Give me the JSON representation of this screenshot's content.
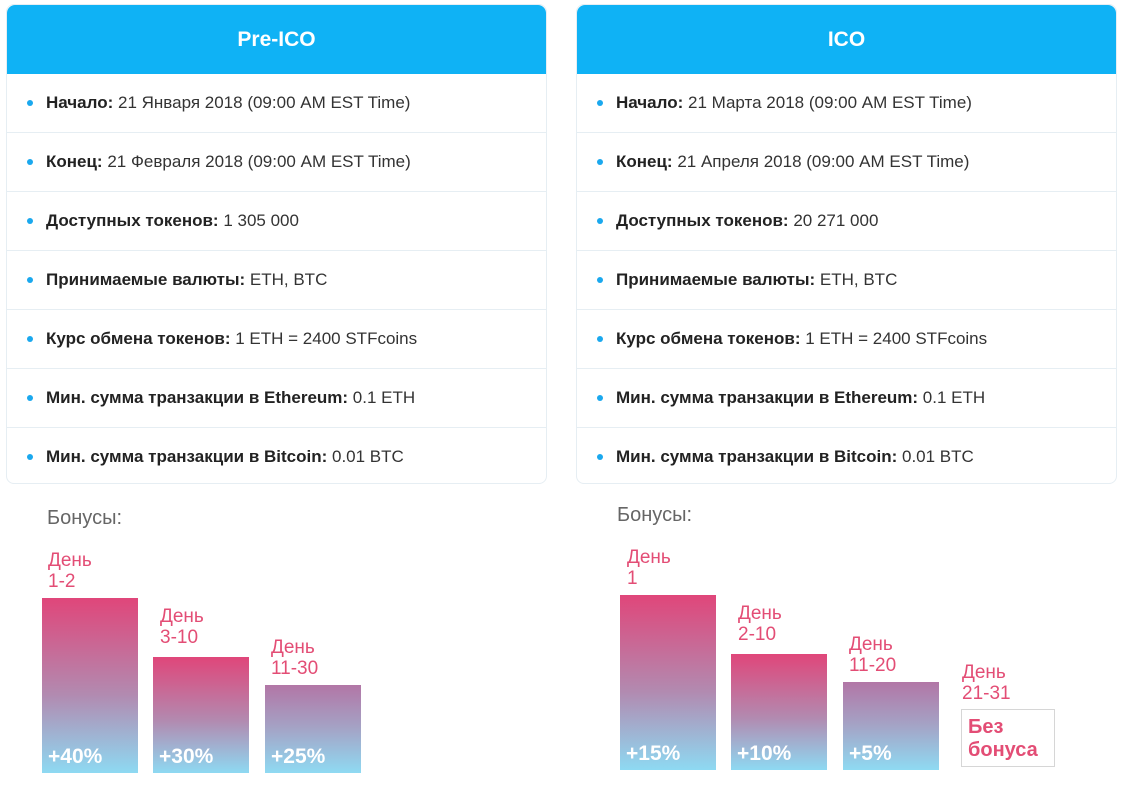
{
  "pre_ico": {
    "title": "Pre-ICO",
    "rows": [
      {
        "label": "Начало:",
        "value": " 21 Января 2018 (09:00 AM EST Time)"
      },
      {
        "label": "Конец:",
        "value": " 21 Февраля 2018 (09:00 AM EST Time)"
      },
      {
        "label": "Доступных токенов:",
        "value": " 1 305 000"
      },
      {
        "label": "Принимаемые валюты:",
        "value": " ETH, BTC"
      },
      {
        "label": "Курс обмена токенов:",
        "value": " 1 ETH = 2400 STFcoins"
      },
      {
        "label": "Мин. сумма транзакции в Ethereum:",
        "value": " 0.1 ETH"
      },
      {
        "label": "Мин. сумма транзакции в Bitcoin:",
        "value": " 0.01 BTC"
      }
    ],
    "bonus_title": "Бонусы:",
    "bonuses": [
      {
        "day_line1": "День",
        "day_line2": "1-2",
        "percent": "+40%"
      },
      {
        "day_line1": "День",
        "day_line2": "3-10",
        "percent": "+30%"
      },
      {
        "day_line1": "День",
        "day_line2": "11-30",
        "percent": "+25%"
      }
    ]
  },
  "ico": {
    "title": "ICO",
    "rows": [
      {
        "label": "Начало:",
        "value": " 21 Марта 2018 (09:00 AM EST Time)"
      },
      {
        "label": "Конец:",
        "value": " 21 Апреля 2018 (09:00 AM EST Time)"
      },
      {
        "label": "Доступных токенов:",
        "value": " 20 271 000"
      },
      {
        "label": "Принимаемые валюты:",
        "value": " ETH, BTC"
      },
      {
        "label": "Курс обмена токенов:",
        "value": " 1 ETH = 2400 STFcoins"
      },
      {
        "label": "Мин. сумма транзакции в Ethereum:",
        "value": " 0.1 ETH"
      },
      {
        "label": "Мин. сумма транзакции в Bitcoin:",
        "value": " 0.01 BTC"
      }
    ],
    "bonus_title": "Бонусы:",
    "bonuses": [
      {
        "day_line1": "День",
        "day_line2": "1",
        "percent": "+15%"
      },
      {
        "day_line1": "День",
        "day_line2": "2-10",
        "percent": "+10%"
      },
      {
        "day_line1": "День",
        "day_line2": "11-20",
        "percent": "+5%"
      },
      {
        "day_line1": "День",
        "day_line2": "21-31",
        "no_bonus_line1": "Без",
        "no_bonus_line2": "бонуса"
      }
    ]
  },
  "colors": {
    "header_blue": "#0fb2f5",
    "bullet_blue": "#1aa8ee",
    "bonus_pink": "#e34d75"
  }
}
